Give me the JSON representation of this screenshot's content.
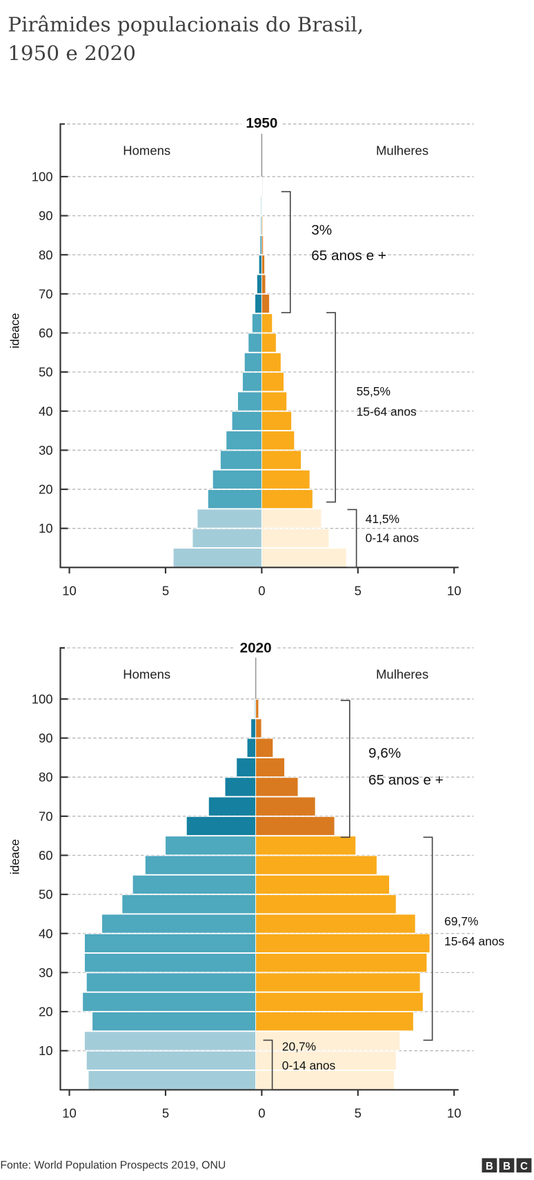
{
  "title_line1": "Pirâmides populacionais do Brasil,",
  "title_line2": "1950 e 2020",
  "source": "Fonte: World Population Prospects 2019, ONU",
  "logo": "BBC",
  "colors": {
    "male_65plus": "#1580a0",
    "male_15_64": "#4ea8be",
    "male_0_14": "#a3ccd9",
    "female_65plus": "#d97a20",
    "female_15_64": "#f9ab1b",
    "female_0_14": "#ffefd5"
  },
  "chart_data": [
    {
      "type": "bar",
      "orientation": "population-pyramid",
      "title": "1950",
      "ylabel": "ideace",
      "left_label": "Homens",
      "right_label": "Mulheres",
      "y_ticks": [
        "10",
        "20",
        "30",
        "40",
        "50",
        "60",
        "70",
        "80",
        "90",
        "100"
      ],
      "x_ticks": [
        "10",
        "5",
        "0",
        "5",
        "10"
      ],
      "xlim": [
        -10,
        10
      ],
      "age_groups": [
        "0-4",
        "5-9",
        "10-14",
        "15-19",
        "20-24",
        "25-29",
        "30-34",
        "35-39",
        "40-44",
        "45-49",
        "50-54",
        "55-59",
        "60-64",
        "65-69",
        "70-74",
        "75-79",
        "80-84",
        "85-89",
        "90-94",
        "95-99",
        "100+"
      ],
      "series": [
        {
          "name": "Homens",
          "values": [
            4.6,
            3.6,
            3.35,
            2.8,
            2.55,
            2.15,
            1.85,
            1.55,
            1.25,
            1.0,
            0.9,
            0.7,
            0.5,
            0.35,
            0.25,
            0.15,
            0.08,
            0.05,
            0.04,
            0.03,
            0
          ]
        },
        {
          "name": "Mulheres",
          "values": [
            4.4,
            3.5,
            3.1,
            2.65,
            2.5,
            2.05,
            1.7,
            1.55,
            1.3,
            1.15,
            1.0,
            0.75,
            0.55,
            0.4,
            0.2,
            0.15,
            0.08,
            0.05,
            0.03,
            0.01,
            0
          ]
        }
      ],
      "annotations": [
        {
          "pct": "3%",
          "label": "65 anos e +"
        },
        {
          "pct": "55,5%",
          "label": "15-64 anos"
        },
        {
          "pct": "41,5%",
          "label": "0-14 anos"
        }
      ],
      "grid": true
    },
    {
      "type": "bar",
      "orientation": "population-pyramid",
      "title": "2020",
      "ylabel": "ideace",
      "left_label": "Homens",
      "right_label": "Mulheres",
      "y_ticks": [
        "10",
        "20",
        "30",
        "40",
        "50",
        "60",
        "70",
        "80",
        "90",
        "100"
      ],
      "x_ticks": [
        "10",
        "5",
        "0",
        "5",
        "10"
      ],
      "xlim": [
        -10,
        10
      ],
      "age_groups": [
        "0-4",
        "5-9",
        "10-14",
        "15-19",
        "20-24",
        "25-29",
        "30-34",
        "35-39",
        "40-44",
        "45-49",
        "50-54",
        "55-59",
        "60-64",
        "65-69",
        "70-74",
        "75-79",
        "80-84",
        "85-89",
        "90-94",
        "95-99",
        "100+"
      ],
      "series": [
        {
          "name": "Homens",
          "values": [
            8.7,
            8.8,
            8.9,
            8.5,
            9.0,
            8.8,
            8.9,
            8.9,
            8.0,
            6.95,
            6.4,
            5.75,
            4.7,
            3.6,
            2.45,
            1.6,
            1.0,
            0.45,
            0.25,
            0.05,
            0
          ]
        },
        {
          "name": "Mulheres",
          "values": [
            7.2,
            7.3,
            7.5,
            8.2,
            8.7,
            8.55,
            8.9,
            9.05,
            8.3,
            7.3,
            6.95,
            6.3,
            5.2,
            4.1,
            3.1,
            2.2,
            1.5,
            0.9,
            0.3,
            0.15,
            0
          ]
        }
      ],
      "annotations": [
        {
          "pct": "9,6%",
          "label": "65 anos e +"
        },
        {
          "pct": "69,7%",
          "label": "15-64 anos"
        },
        {
          "pct": "20,7%",
          "label": "0-14 anos"
        }
      ],
      "grid": true
    }
  ]
}
